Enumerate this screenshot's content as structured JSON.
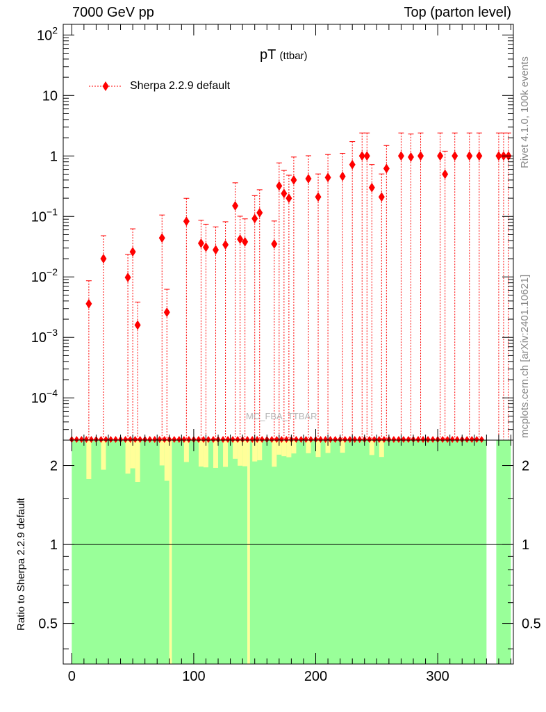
{
  "header": {
    "left": "7000 GeV pp",
    "right": "Top (parton level)"
  },
  "side": {
    "rivet": "Rivet 4.1.0,  100k events",
    "mcplots": "mcplots.cern.ch [arXiv:2401.10621]"
  },
  "plot_title": {
    "main": "pT",
    "sub": "(ttbar)"
  },
  "legend": {
    "entry": "Sherpa 2.2.9 default",
    "placement": "top-left"
  },
  "watermark": "MC_FBA_TTBAR",
  "ratio_axis_label": "Ratio to Sherpa 2.2.9 default",
  "colors": {
    "series": "#ff0000",
    "band_green": "#99ff99",
    "band_yellow": "#ffff99"
  },
  "chart_data": {
    "type": "scatter",
    "x_ticks": [
      "0",
      "100",
      "200",
      "300"
    ],
    "xlim": [
      -7,
      362
    ],
    "main": {
      "yscale": "log",
      "ylim": [
        2e-05,
        150
      ],
      "y_ticks": [
        {
          "v": 100,
          "base": "10",
          "exp": "2"
        },
        {
          "v": 10,
          "base": "10",
          "exp": ""
        },
        {
          "v": 1,
          "base": "1",
          "exp": ""
        },
        {
          "v": 0.1,
          "base": "10",
          "exp": "−1"
        },
        {
          "v": 0.01,
          "base": "10",
          "exp": "−2"
        },
        {
          "v": 0.001,
          "base": "10",
          "exp": "−3"
        },
        {
          "v": 0.0001,
          "base": "10",
          "exp": "−4"
        }
      ],
      "series": [
        {
          "name": "Sherpa 2.2.9 default",
          "x": [
            14,
            26,
            46,
            50,
            54,
            74,
            78,
            94,
            106,
            110,
            118,
            126,
            134,
            138,
            142,
            150,
            154,
            166,
            170,
            174,
            178,
            182,
            194,
            202,
            210,
            222,
            230,
            238,
            242,
            246,
            254,
            258,
            270,
            278,
            286,
            302,
            306,
            314,
            326,
            334,
            350,
            354,
            358
          ],
          "y": [
            0.0036,
            0.02,
            0.0098,
            0.026,
            0.0016,
            0.044,
            0.0026,
            0.083,
            0.036,
            0.031,
            0.028,
            0.034,
            0.15,
            0.042,
            0.038,
            0.092,
            0.115,
            0.035,
            0.32,
            0.24,
            0.2,
            0.4,
            0.42,
            0.21,
            0.44,
            0.46,
            0.72,
            1.0,
            1.0,
            0.3,
            0.21,
            0.62,
            1.0,
            0.96,
            1.0,
            1.0,
            0.5,
            1.0,
            1.0,
            1.0,
            1.0,
            1.0,
            1.0
          ]
        }
      ]
    },
    "ratio": {
      "ylim": [
        0.35,
        2.5
      ],
      "yscale": "log",
      "y_ticks": [
        2,
        1,
        0.5
      ],
      "reference_line": 1,
      "x_ranges_green": [
        [
          0,
          80
        ],
        [
          82,
          144
        ],
        [
          146,
          340
        ],
        [
          348,
          360
        ]
      ],
      "x_ranges_yellow_full": [
        [
          80,
          82
        ],
        [
          144,
          146
        ]
      ]
    }
  }
}
